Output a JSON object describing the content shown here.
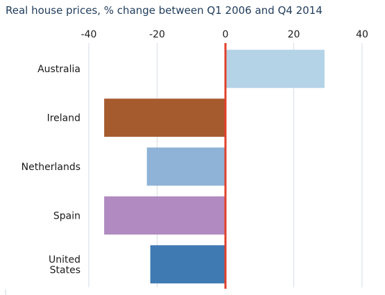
{
  "chart_data": {
    "type": "bar",
    "orientation": "horizontal",
    "title": "Real house prices, % change between Q1 2006 and Q4 2014",
    "xlim": [
      -40,
      40
    ],
    "xticks": [
      -40,
      -20,
      0,
      20,
      40
    ],
    "tick_labels": [
      "-40",
      "-20",
      "0",
      "20",
      "40"
    ],
    "xlabel": "",
    "ylabel": "",
    "grid": true,
    "categories": [
      "Australia",
      "Ireland",
      "Netherlands",
      "Spain",
      "United States"
    ],
    "category_label_lines": [
      [
        "Australia"
      ],
      [
        "Ireland"
      ],
      [
        "Netherlands"
      ],
      [
        "Spain"
      ],
      [
        "United",
        "States"
      ]
    ],
    "values": [
      29,
      -35.5,
      -23,
      -35.5,
      -22
    ],
    "colors": [
      "#b4d3e6",
      "#a65b2f",
      "#8fb3d6",
      "#b08ac0",
      "#3f7ab3"
    ],
    "zero_line_color": "#e0402a"
  }
}
